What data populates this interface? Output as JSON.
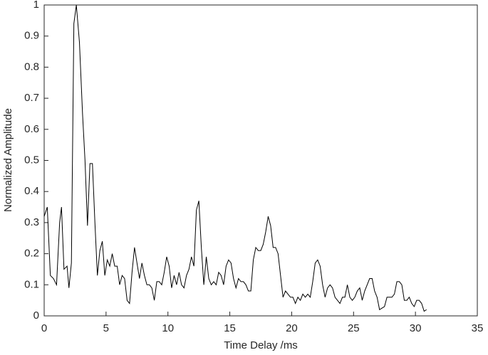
{
  "chart_data": {
    "type": "line",
    "xlabel": "Time Delay /ms",
    "ylabel": "Normalized Amplitude",
    "xlim": [
      0,
      35
    ],
    "ylim": [
      0,
      1
    ],
    "xticks": [
      0,
      5,
      10,
      15,
      20,
      25,
      30,
      35
    ],
    "yticks": [
      0,
      0.1,
      0.2,
      0.3,
      0.4,
      0.5,
      0.6,
      0.7,
      0.8,
      0.9,
      1
    ],
    "series": [
      {
        "color": "#000000",
        "x": [
          0,
          0.25,
          0.5,
          0.75,
          1.0,
          1.25,
          1.4,
          1.6,
          1.85,
          2.0,
          2.2,
          2.4,
          2.6,
          2.85,
          3.1,
          3.3,
          3.5,
          3.7,
          3.9,
          4.1,
          4.3,
          4.5,
          4.7,
          4.9,
          5.1,
          5.3,
          5.5,
          5.7,
          5.9,
          6.1,
          6.3,
          6.5,
          6.7,
          6.9,
          7.1,
          7.3,
          7.5,
          7.7,
          7.9,
          8.1,
          8.3,
          8.5,
          8.7,
          8.9,
          9.1,
          9.3,
          9.5,
          9.7,
          9.9,
          10.1,
          10.3,
          10.5,
          10.7,
          10.9,
          11.1,
          11.3,
          11.5,
          11.7,
          11.9,
          12.1,
          12.3,
          12.5,
          12.7,
          12.9,
          13.1,
          13.3,
          13.5,
          13.7,
          13.9,
          14.1,
          14.3,
          14.5,
          14.7,
          14.9,
          15.1,
          15.3,
          15.5,
          15.7,
          15.9,
          16.1,
          16.3,
          16.5,
          16.7,
          16.9,
          17.1,
          17.3,
          17.5,
          17.7,
          17.9,
          18.1,
          18.3,
          18.5,
          18.7,
          18.9,
          19.1,
          19.3,
          19.5,
          19.7,
          19.9,
          20.1,
          20.3,
          20.5,
          20.7,
          20.9,
          21.1,
          21.3,
          21.5,
          21.7,
          21.9,
          22.1,
          22.3,
          22.5,
          22.7,
          22.9,
          23.1,
          23.3,
          23.5,
          23.7,
          23.9,
          24.1,
          24.3,
          24.5,
          24.7,
          24.9,
          25.1,
          25.3,
          25.5,
          25.7,
          25.9,
          26.1,
          26.3,
          26.5,
          26.7,
          26.9,
          27.1,
          27.3,
          27.5,
          27.7,
          27.9,
          28.1,
          28.3,
          28.5,
          28.7,
          28.9,
          29.1,
          29.3,
          29.5,
          29.7,
          29.9,
          30.1,
          30.3,
          30.5,
          30.7,
          30.9
        ],
        "values": [
          0.32,
          0.35,
          0.13,
          0.12,
          0.1,
          0.3,
          0.35,
          0.15,
          0.16,
          0.09,
          0.17,
          0.94,
          1.0,
          0.88,
          0.65,
          0.5,
          0.29,
          0.49,
          0.49,
          0.3,
          0.13,
          0.21,
          0.24,
          0.13,
          0.18,
          0.16,
          0.2,
          0.16,
          0.16,
          0.1,
          0.13,
          0.12,
          0.05,
          0.04,
          0.14,
          0.22,
          0.17,
          0.12,
          0.17,
          0.13,
          0.1,
          0.1,
          0.09,
          0.05,
          0.11,
          0.11,
          0.1,
          0.14,
          0.19,
          0.16,
          0.09,
          0.13,
          0.1,
          0.14,
          0.1,
          0.09,
          0.13,
          0.15,
          0.19,
          0.16,
          0.34,
          0.37,
          0.22,
          0.1,
          0.19,
          0.12,
          0.1,
          0.11,
          0.1,
          0.14,
          0.13,
          0.1,
          0.16,
          0.18,
          0.17,
          0.12,
          0.09,
          0.12,
          0.11,
          0.11,
          0.1,
          0.08,
          0.08,
          0.18,
          0.22,
          0.21,
          0.21,
          0.23,
          0.27,
          0.32,
          0.29,
          0.22,
          0.22,
          0.2,
          0.13,
          0.06,
          0.08,
          0.07,
          0.06,
          0.06,
          0.04,
          0.06,
          0.05,
          0.07,
          0.06,
          0.07,
          0.06,
          0.11,
          0.17,
          0.18,
          0.16,
          0.1,
          0.06,
          0.09,
          0.1,
          0.09,
          0.06,
          0.05,
          0.04,
          0.06,
          0.06,
          0.1,
          0.06,
          0.05,
          0.06,
          0.08,
          0.09,
          0.05,
          0.08,
          0.1,
          0.12,
          0.12,
          0.08,
          0.06,
          0.02,
          0.025,
          0.03,
          0.06,
          0.06,
          0.06,
          0.07,
          0.11,
          0.11,
          0.1,
          0.05,
          0.05,
          0.06,
          0.04,
          0.03,
          0.05,
          0.05,
          0.04,
          0.015,
          0.02
        ]
      }
    ]
  }
}
